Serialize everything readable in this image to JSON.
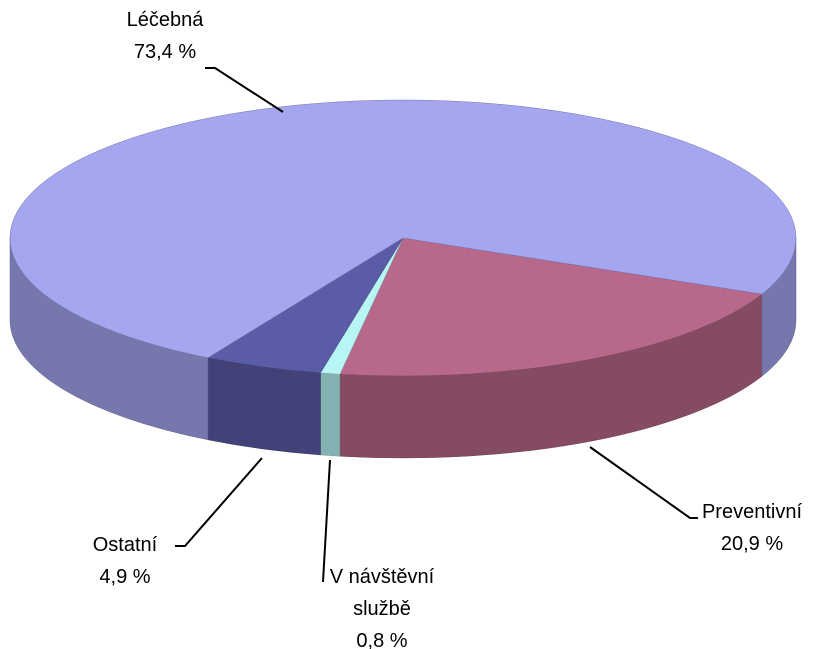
{
  "chart_data": {
    "type": "pie3d",
    "categories": [
      "Preventivní",
      "V návštěvní službě",
      "Ostatní",
      "Léčebná"
    ],
    "values": [
      20.9,
      0.8,
      4.9,
      73.4
    ],
    "value_labels": [
      "20,9 %",
      "0,8 %",
      "4,9 %",
      "73,4 %"
    ],
    "colors": [
      "#b8688a",
      "#b8f6f6",
      "#5b5ca8",
      "#a4a6f0"
    ]
  }
}
